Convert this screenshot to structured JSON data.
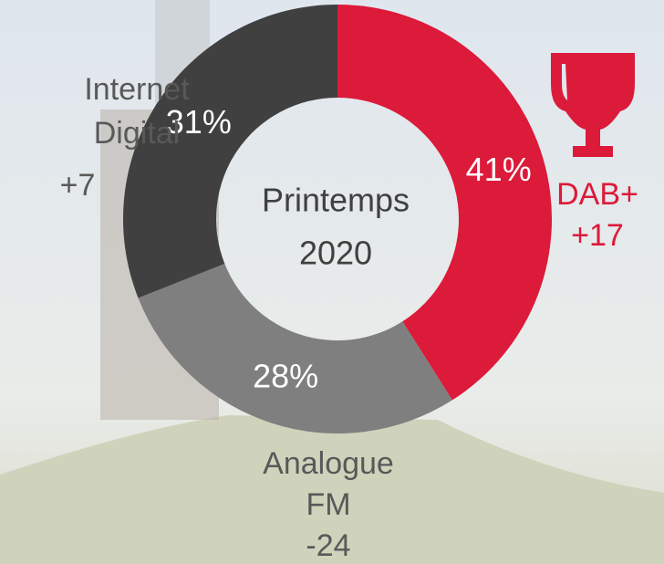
{
  "chart_data": {
    "type": "donut",
    "center_text": [
      "Printemps",
      "2020"
    ],
    "categories": [
      "DAB+",
      "Analogue FM",
      "Internet Digital"
    ],
    "values": [
      41,
      28,
      31
    ],
    "value_labels": [
      "41%",
      "28%",
      "31%"
    ],
    "colors": [
      "#dc1a3a",
      "#7f7f7f",
      "#404040"
    ],
    "changes": [
      {
        "value": 17,
        "label": "+17"
      },
      {
        "value": -24,
        "label": "-24"
      },
      {
        "value": 7,
        "label": "+7"
      }
    ]
  }
}
